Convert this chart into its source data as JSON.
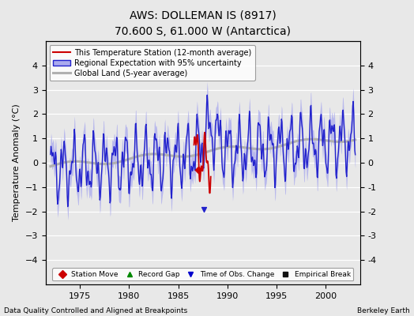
{
  "title": "AWS: DOLLEMAN IS (8917)",
  "subtitle": "70.600 S, 61.000 W (Antarctica)",
  "ylabel": "Temperature Anomaly (°C)",
  "xlabel_left": "Data Quality Controlled and Aligned at Breakpoints",
  "xlabel_right": "Berkeley Earth",
  "ylim": [
    -5,
    5
  ],
  "xlim": [
    1971.5,
    2003.5
  ],
  "xticks": [
    1975,
    1980,
    1985,
    1990,
    1995,
    2000
  ],
  "yticks": [
    -4,
    -3,
    -2,
    -1,
    0,
    1,
    2,
    3,
    4
  ],
  "background_color": "#e8e8e8",
  "plot_bg_color": "#e8e8e8",
  "grid_color": "#ffffff",
  "regional_line_color": "#2222cc",
  "regional_fill_color": "#aaaaee",
  "station_line_color": "#cc0000",
  "global_line_color": "#b0b0b0",
  "legend_items": [
    "This Temperature Station (12-month average)",
    "Regional Expectation with 95% uncertainty",
    "Global Land (5-year average)"
  ],
  "marker_legend": [
    {
      "label": "Station Move",
      "color": "#cc0000",
      "marker": "D"
    },
    {
      "label": "Record Gap",
      "color": "#008800",
      "marker": "^"
    },
    {
      "label": "Time of Obs. Change",
      "color": "#0000cc",
      "marker": "v"
    },
    {
      "label": "Empirical Break",
      "color": "#111111",
      "marker": "s"
    }
  ]
}
